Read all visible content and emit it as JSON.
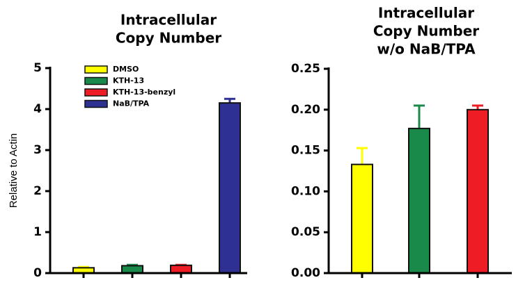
{
  "chart_data": [
    {
      "type": "bar",
      "title": [
        "Intracellular",
        "Copy Number"
      ],
      "ylabel": "Relative to Actin",
      "categories": [
        null,
        null,
        null,
        null
      ],
      "values": [
        0.13,
        0.18,
        0.19,
        4.15
      ],
      "errors": [
        0.02,
        0.02,
        0.01,
        0.1
      ],
      "colors": [
        "#ffff00",
        "#1a8a4a",
        "#ee1c24",
        "#2e3192"
      ],
      "legend": [
        "DMSO",
        "KTH-13",
        "KTH-13-benzyl",
        "NaB/TPA"
      ],
      "ylim": [
        0,
        5
      ],
      "yticks": [
        0,
        1,
        2,
        3,
        4,
        5
      ]
    },
    {
      "type": "bar",
      "title": [
        "Intracellular",
        "Copy Number",
        "w/o NaB/TPA"
      ],
      "categories": [
        null,
        null,
        null
      ],
      "values": [
        0.133,
        0.177,
        0.2
      ],
      "errors": [
        0.02,
        0.028,
        0.005
      ],
      "colors": [
        "#ffff00",
        "#1a8a4a",
        "#ee1c24"
      ],
      "ylim": [
        0,
        0.25
      ],
      "yticks": [
        {
          "value": 0,
          "label": "0.00"
        },
        0.05,
        {
          "value": 0.1,
          "label": "0.10"
        },
        0.15,
        {
          "value": 0.2,
          "label": "0.20"
        },
        0.25
      ]
    }
  ]
}
